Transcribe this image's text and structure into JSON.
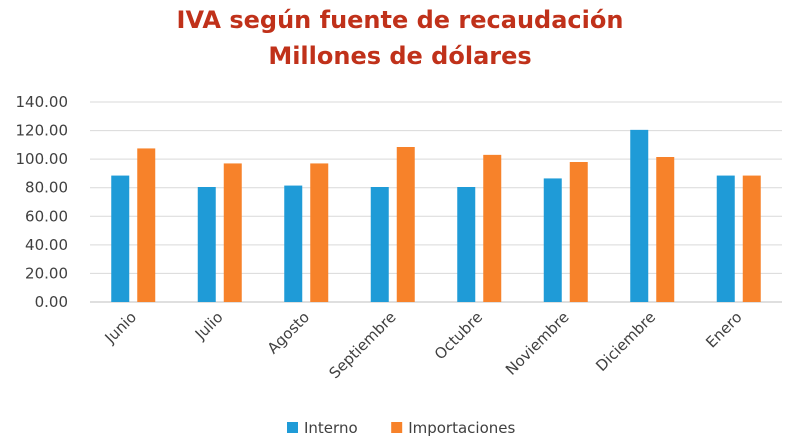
{
  "chart_data": {
    "type": "bar",
    "title": "IVA según fuente de recaudación",
    "subtitle": "Millones de dólares",
    "categories": [
      "Junio",
      "Julio",
      "Agosto",
      "Septiembre",
      "Octubre",
      "Noviembre",
      "Diciembre",
      "Enero"
    ],
    "series": [
      {
        "name": "Interno",
        "color": "#1f9bd7",
        "values": [
          88.5,
          80.5,
          81.5,
          80.5,
          80.5,
          86.5,
          120.5,
          88.5
        ]
      },
      {
        "name": "Importaciones",
        "color": "#f7822a",
        "values": [
          107.5,
          97.0,
          97.0,
          108.5,
          103.0,
          98.0,
          101.5,
          88.5
        ]
      }
    ],
    "yticks": [
      "0.00",
      "20.00",
      "40.00",
      "60.00",
      "80.00",
      "100.00",
      "120.00",
      "140.00"
    ],
    "ylim": [
      0,
      140
    ],
    "grid": true,
    "legend_position": "bottom",
    "title_color": "#c0311a"
  }
}
